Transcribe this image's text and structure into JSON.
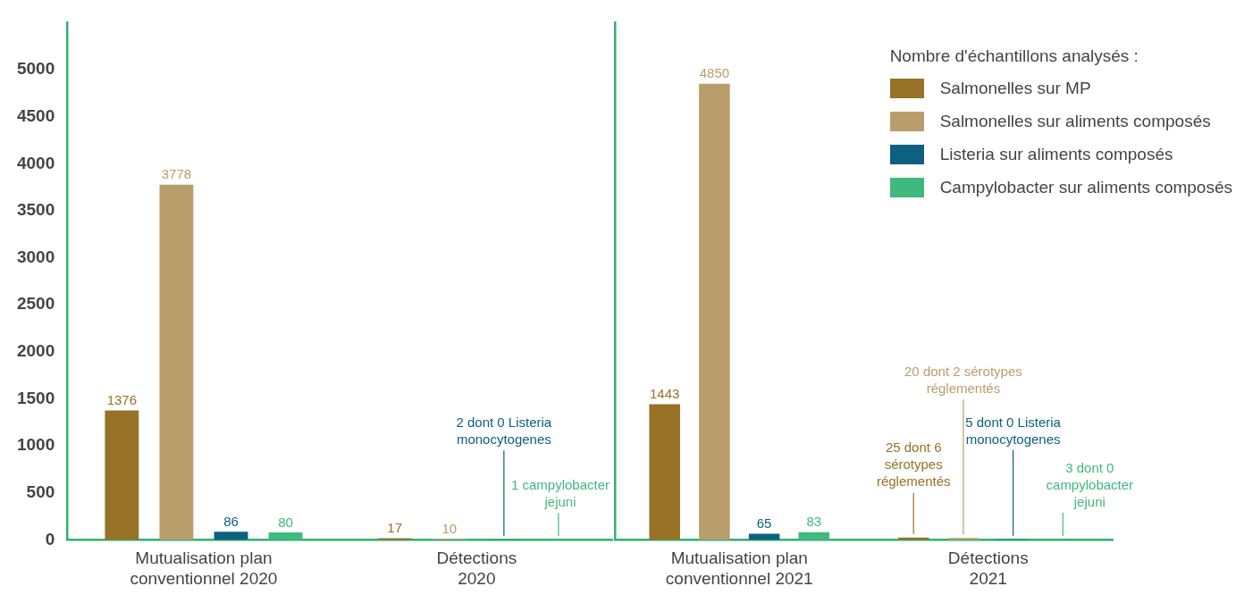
{
  "chart_data": [
    {
      "type": "bar",
      "categories": [
        "Mutualisation plan conventionnel 2020",
        "Détections 2020"
      ],
      "grid": false,
      "ylim": [
        0,
        5500
      ],
      "yticks": [
        0,
        500,
        1000,
        1500,
        2000,
        2500,
        3000,
        3500,
        4000,
        4500,
        5000
      ],
      "series": [
        {
          "color": "#967126",
          "values": [
            1376,
            17
          ],
          "value_labels": [
            "1376",
            "17"
          ]
        },
        {
          "color": "#b99d6b",
          "values": [
            3778,
            10
          ],
          "value_labels": [
            "3778",
            "10"
          ]
        },
        {
          "color": "#0d6080",
          "values": [
            86,
            2
          ],
          "value_labels": [
            "86",
            "2 dont 0 Listeria monocytogenes"
          ]
        },
        {
          "color": "#40b97c",
          "values": [
            80,
            1
          ],
          "value_labels": [
            "80",
            "1 campylobacter jejuni"
          ]
        }
      ]
    },
    {
      "type": "bar",
      "categories": [
        "Mutualisation plan conventionnel 2021",
        "Détections 2021"
      ],
      "grid": false,
      "tick_labels": "x",
      "legend_title": "Nombre d'échantillons analysés :",
      "legend": "top right",
      "ylim": [
        0,
        5500
      ],
      "yticks": [
        0,
        500,
        1000,
        1500,
        2000,
        2500,
        3000,
        3500,
        4000,
        4500,
        5000
      ],
      "series": [
        {
          "name": "Salmonelles sur MP",
          "color": "#967126",
          "values": [
            1443,
            25
          ],
          "value_labels": [
            "1443",
            "25 dont 6 sérotypes réglementés"
          ]
        },
        {
          "name": "Salmonelles sur aliments composés",
          "color": "#b99d6b",
          "values": [
            4850,
            20
          ],
          "value_labels": [
            "4850",
            "20 dont 2 sérotypes réglementés"
          ]
        },
        {
          "name": "Listeria sur aliments composés",
          "color": "#0d6080",
          "values": [
            65,
            5
          ],
          "value_labels": [
            "65",
            "5 dont 0 Listeria monocytogenes"
          ]
        },
        {
          "name": "Campylobacter sur aliments composés",
          "color": "#40b97c",
          "values": [
            83,
            3
          ],
          "value_labels": [
            "83",
            "3 dont 0 campylobacter jejuni"
          ]
        }
      ]
    }
  ]
}
